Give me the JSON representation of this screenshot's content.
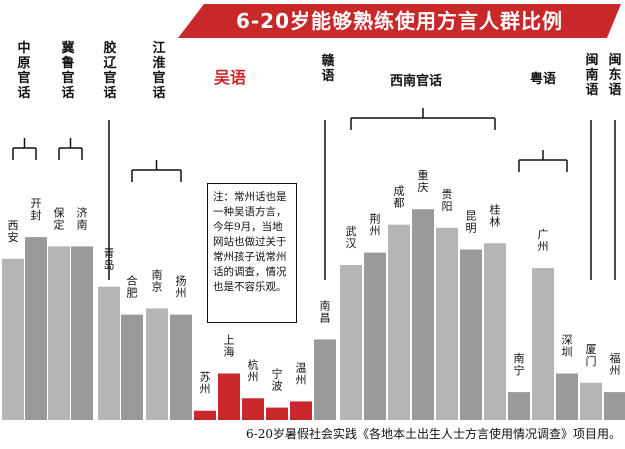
{
  "chart_data": {
    "type": "bar",
    "title": "6-20岁能够熟练使用方言人群比例",
    "source_note": "6-20岁暑假社会实践《各地本土出生人士方言使用情况调查》项目用。",
    "annotation": "注：常州话也是一种吴语方言，今年9月，当地网站也做过关于常州孩子说常州话的调查，情况也是不容乐观。",
    "ylim": [
      0,
      100
    ],
    "groups": [
      {
        "name": "中原官话",
        "cities": [
          "西安",
          "开封"
        ]
      },
      {
        "name": "冀鲁官话",
        "cities": [
          "保定",
          "济南"
        ]
      },
      {
        "name": "胶辽官话",
        "cities": [
          "青岛"
        ]
      },
      {
        "name": "江淮官话",
        "cities": [
          "合肥",
          "南京",
          "扬州"
        ]
      },
      {
        "name": "吴语",
        "cities": [
          "苏州",
          "上海",
          "杭州",
          "宁波",
          "温州"
        ]
      },
      {
        "name": "赣语",
        "cities": [
          "南昌"
        ]
      },
      {
        "name": "西南官话",
        "cities": [
          "武汉",
          "荆州",
          "成都",
          "重庆",
          "贵阳",
          "昆明",
          "桂林"
        ]
      },
      {
        "name": "粤语",
        "cities": [
          "南宁",
          "广州",
          "深圳"
        ]
      },
      {
        "name": "闽南语",
        "cities": [
          "厦门"
        ]
      },
      {
        "name": "闽东语",
        "cities": [
          "福州"
        ]
      }
    ],
    "categories": [
      "西安",
      "开封",
      "保定",
      "济南",
      "青岛",
      "合肥",
      "南京",
      "扬州",
      "苏州",
      "上海",
      "杭州",
      "宁波",
      "温州",
      "南昌",
      "武汉",
      "荆州",
      "成都",
      "重庆",
      "贵阳",
      "昆明",
      "桂林",
      "南宁",
      "广州",
      "深圳",
      "厦门",
      "福州"
    ],
    "values": [
      52,
      59,
      56,
      56,
      43,
      34,
      36,
      34,
      3,
      15,
      7,
      4,
      6,
      26,
      50,
      54,
      63,
      68,
      62,
      55,
      57,
      9,
      49,
      15,
      12,
      9
    ],
    "highlight": [
      "苏州",
      "上海",
      "杭州",
      "宁波",
      "温州"
    ],
    "colors": {
      "normal": "#b5b5b5",
      "alt": "#9a9a9a",
      "highlight": "#c8282a",
      "line": "#111111"
    }
  }
}
